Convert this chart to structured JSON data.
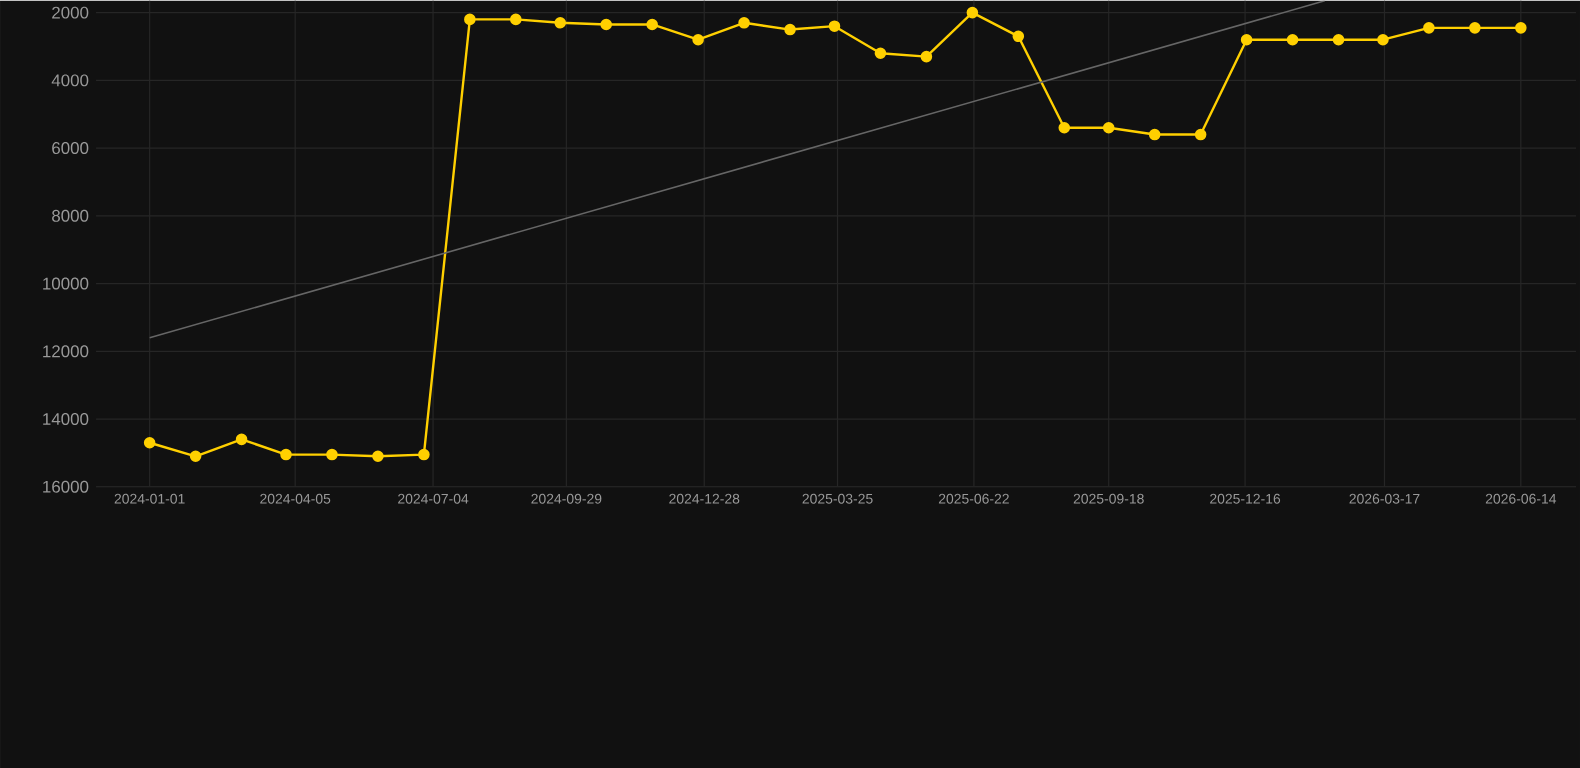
{
  "chart_data": {
    "type": "line",
    "x": [
      "2024-01-01",
      "2024-01-31",
      "2024-03-01",
      "2024-03-30",
      "2024-04-29",
      "2024-05-29",
      "2024-06-28",
      "2024-07-28",
      "2024-08-27",
      "2024-09-25",
      "2024-10-25",
      "2024-11-24",
      "2024-12-24",
      "2025-01-23",
      "2025-02-22",
      "2025-03-23",
      "2025-04-22",
      "2025-05-22",
      "2025-06-21",
      "2025-07-21",
      "2025-08-20",
      "2025-09-18",
      "2025-10-18",
      "2025-11-17",
      "2025-12-17",
      "2026-01-16",
      "2026-02-15",
      "2026-03-16",
      "2026-04-15",
      "2026-05-15",
      "2026-06-14"
    ],
    "series": [
      {
        "color": "#ffd000",
        "marker": "circle",
        "values": [
          14700,
          15100,
          14600,
          15050,
          15050,
          15100,
          15050,
          2200,
          2200,
          2300,
          2350,
          2350,
          2800,
          2300,
          2500,
          2400,
          3200,
          3300,
          2000,
          2700,
          5400,
          5400,
          5600,
          5600,
          2800,
          2800,
          2800,
          2800,
          2450,
          2450,
          2450
        ]
      },
      {
        "type": "line",
        "color": "#666666",
        "marker": "none",
        "x": [
          "2024-01-01",
          "2026-02-06"
        ],
        "values": [
          11600,
          1650
        ]
      }
    ],
    "xlim": [
      "2023-11-27",
      "2026-07-20"
    ],
    "xticks": [
      "2024-01-01",
      "2024-04-05",
      "2024-07-04",
      "2024-09-29",
      "2024-12-28",
      "2025-03-25",
      "2025-06-22",
      "2025-09-18",
      "2025-12-16",
      "2026-03-17",
      "2026-06-14"
    ],
    "ylim": [
      16000,
      1650
    ],
    "yticks": [
      2000,
      4000,
      6000,
      8000,
      10000,
      12000,
      14000,
      16000
    ],
    "grid": true
  }
}
